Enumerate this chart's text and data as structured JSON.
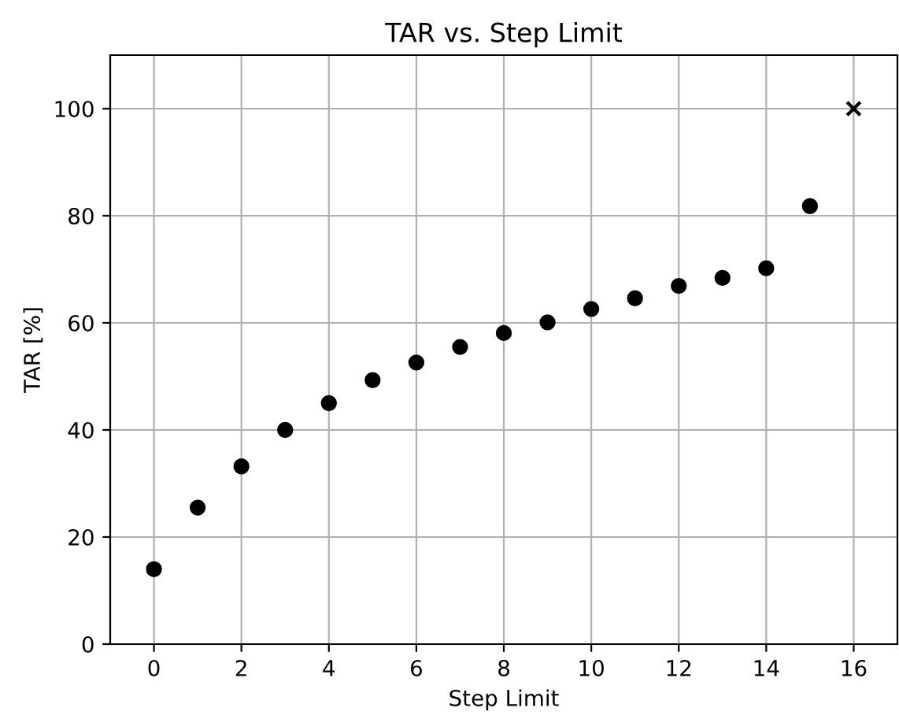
{
  "chart_data": {
    "type": "scatter",
    "title": "TAR vs. Step Limit",
    "xlabel": "Step Limit",
    "ylabel": "TAR [%]",
    "series": [
      {
        "color": "#000000",
        "marker": "circle",
        "x": [
          0,
          1,
          2,
          3,
          4,
          5,
          6,
          7,
          8,
          9,
          10,
          11,
          12,
          13,
          14,
          15
        ],
        "values": [
          14,
          25.5,
          33.2,
          40,
          45,
          49.3,
          52.6,
          55.5,
          58.1,
          60.1,
          62.6,
          64.6,
          66.9,
          68.4,
          70.2,
          81.8
        ]
      },
      {
        "color": "#000000",
        "marker": "cross",
        "x": [
          16
        ],
        "values": [
          100
        ]
      }
    ],
    "xlim": [
      -1,
      17
    ],
    "ylim": [
      0,
      110
    ],
    "xticks": [
      0,
      2,
      4,
      6,
      8,
      10,
      12,
      14,
      16
    ],
    "yticks": [
      0,
      20,
      40,
      60,
      80,
      100
    ],
    "grid": true
  }
}
